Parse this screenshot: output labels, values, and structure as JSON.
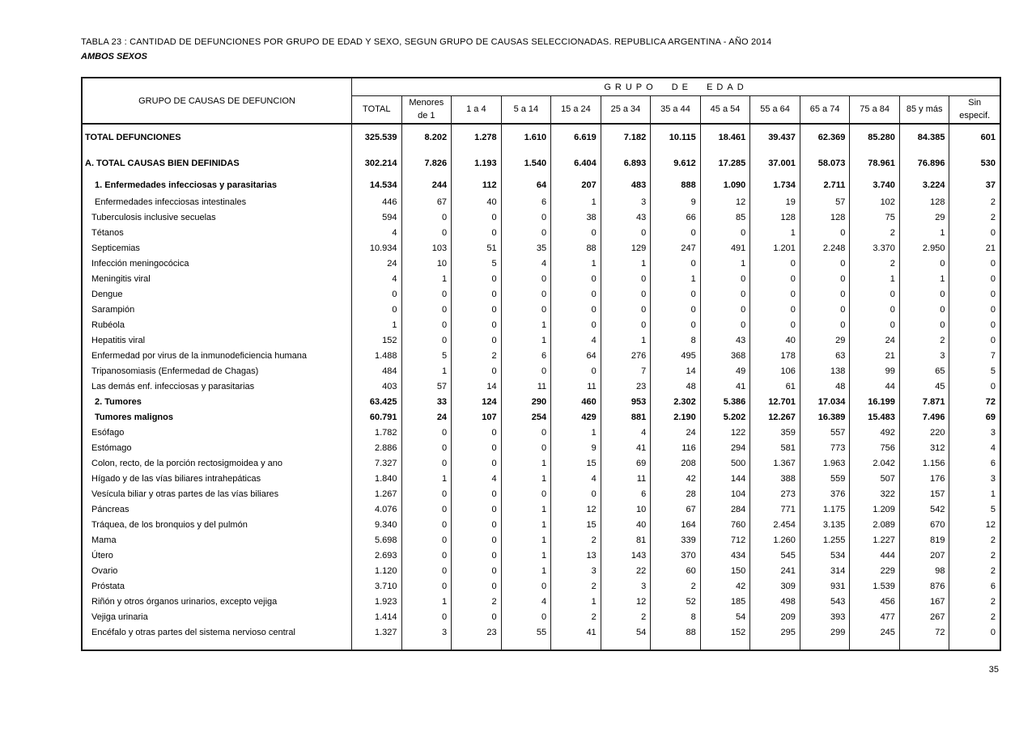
{
  "page": {
    "number": "35"
  },
  "title": {
    "line1": "TABLA 23 : CANTIDAD DE DEFUNCIONES POR GRUPO DE EDAD Y SEXO,  SEGUN GRUPO DE CAUSAS SELECCIONADAS. REPUBLICA ARGENTINA - AÑO 2014",
    "line2": "AMBOS SEXOS"
  },
  "table": {
    "causes_header": "GRUPO DE CAUSAS DE DEFUNCION",
    "group_header": "GRUPO DE EDAD",
    "columns": [
      "TOTAL",
      "Menores\nde 1",
      "1 a 4",
      "5 a 14",
      "15 a 24",
      "25 a 34",
      "35 a 44",
      "45 a 54",
      "55 a 64",
      "65 a 74",
      "75 a 84",
      "85 y más",
      "Sin\nespecif."
    ],
    "rows": [
      {
        "label": "TOTAL DEFUNCIONES",
        "bold": true,
        "indent": 0,
        "size": "xl",
        "values": [
          "325.539",
          "8.202",
          "1.278",
          "1.610",
          "6.619",
          "7.182",
          "10.115",
          "18.461",
          "39.437",
          "62.369",
          "85.280",
          "84.385",
          "601"
        ]
      },
      {
        "label": "A. TOTAL CAUSAS BIEN DEFINIDAS",
        "bold": true,
        "indent": 0,
        "size": "xl",
        "values": [
          "302.214",
          "7.826",
          "1.193",
          "1.540",
          "6.404",
          "6.893",
          "9.612",
          "17.285",
          "37.001",
          "58.073",
          "78.961",
          "76.896",
          "530"
        ]
      },
      {
        "label": "1. Enfermedades infecciosas y parasitarias",
        "bold": true,
        "indent": 2,
        "size": "lg",
        "values": [
          "14.534",
          "244",
          "112",
          "64",
          "207",
          "483",
          "888",
          "1.090",
          "1.734",
          "2.711",
          "3.740",
          "3.224",
          "37"
        ]
      },
      {
        "label": "Enfermedades infecciosas intestinales",
        "bold": false,
        "indent": 2,
        "values": [
          "446",
          "67",
          "40",
          "6",
          "1",
          "3",
          "9",
          "12",
          "19",
          "57",
          "102",
          "128",
          "2"
        ]
      },
      {
        "label": "Tuberculosis inclusive secuelas",
        "bold": false,
        "indent": 1,
        "values": [
          "594",
          "0",
          "0",
          "0",
          "38",
          "43",
          "66",
          "85",
          "128",
          "128",
          "75",
          "29",
          "2"
        ]
      },
      {
        "label": "Tétanos",
        "bold": false,
        "indent": 1,
        "values": [
          "4",
          "0",
          "0",
          "0",
          "0",
          "0",
          "0",
          "0",
          "1",
          "0",
          "2",
          "1",
          "0"
        ]
      },
      {
        "label": "Septicemias",
        "bold": false,
        "indent": 1,
        "values": [
          "10.934",
          "103",
          "51",
          "35",
          "88",
          "129",
          "247",
          "491",
          "1.201",
          "2.248",
          "3.370",
          "2.950",
          "21"
        ]
      },
      {
        "label": "Infección meningocócica",
        "bold": false,
        "indent": 1,
        "values": [
          "24",
          "10",
          "5",
          "4",
          "1",
          "1",
          "0",
          "1",
          "0",
          "0",
          "2",
          "0",
          "0"
        ]
      },
      {
        "label": "Meningitis viral",
        "bold": false,
        "indent": 1,
        "values": [
          "4",
          "1",
          "0",
          "0",
          "0",
          "0",
          "1",
          "0",
          "0",
          "0",
          "1",
          "1",
          "0"
        ]
      },
      {
        "label": "Dengue",
        "bold": false,
        "indent": 1,
        "values": [
          "0",
          "0",
          "0",
          "0",
          "0",
          "0",
          "0",
          "0",
          "0",
          "0",
          "0",
          "0",
          "0"
        ]
      },
      {
        "label": "Sarampión",
        "bold": false,
        "indent": 1,
        "values": [
          "0",
          "0",
          "0",
          "0",
          "0",
          "0",
          "0",
          "0",
          "0",
          "0",
          "0",
          "0",
          "0"
        ]
      },
      {
        "label": "Rubéola",
        "bold": false,
        "indent": 1,
        "values": [
          "1",
          "0",
          "0",
          "1",
          "0",
          "0",
          "0",
          "0",
          "0",
          "0",
          "0",
          "0",
          "0"
        ]
      },
      {
        "label": "Hepatitis viral",
        "bold": false,
        "indent": 1,
        "values": [
          "152",
          "0",
          "0",
          "1",
          "4",
          "1",
          "8",
          "43",
          "40",
          "29",
          "24",
          "2",
          "0"
        ]
      },
      {
        "label": "Enfermedad por virus de la inmunodeficiencia humana",
        "bold": false,
        "indent": 1,
        "values": [
          "1.488",
          "5",
          "2",
          "6",
          "64",
          "276",
          "495",
          "368",
          "178",
          "63",
          "21",
          "3",
          "7"
        ]
      },
      {
        "label": "Tripanosomiasis (Enfermedad de Chagas)",
        "bold": false,
        "indent": 1,
        "values": [
          "484",
          "1",
          "0",
          "0",
          "0",
          "7",
          "14",
          "49",
          "106",
          "138",
          "99",
          "65",
          "5"
        ]
      },
      {
        "label": "Las demás enf. infecciosas y parasitarias",
        "bold": false,
        "indent": 1,
        "values": [
          "403",
          "57",
          "14",
          "11",
          "11",
          "23",
          "48",
          "41",
          "61",
          "48",
          "44",
          "45",
          "0"
        ]
      },
      {
        "label": "2. Tumores",
        "bold": true,
        "indent": 2,
        "values": [
          "63.425",
          "33",
          "124",
          "290",
          "460",
          "953",
          "2.302",
          "5.386",
          "12.701",
          "17.034",
          "16.199",
          "7.871",
          "72"
        ]
      },
      {
        "label": "Tumores malignos",
        "bold": true,
        "indent": 2,
        "values": [
          "60.791",
          "24",
          "107",
          "254",
          "429",
          "881",
          "2.190",
          "5.202",
          "12.267",
          "16.389",
          "15.483",
          "7.496",
          "69"
        ]
      },
      {
        "label": "Esófago",
        "bold": false,
        "indent": 1,
        "values": [
          "1.782",
          "0",
          "0",
          "0",
          "1",
          "4",
          "24",
          "122",
          "359",
          "557",
          "492",
          "220",
          "3"
        ]
      },
      {
        "label": "Estómago",
        "bold": false,
        "indent": 1,
        "values": [
          "2.886",
          "0",
          "0",
          "0",
          "9",
          "41",
          "116",
          "294",
          "581",
          "773",
          "756",
          "312",
          "4"
        ]
      },
      {
        "label": "Colon, recto,  de la porción rectosigmoidea y ano",
        "bold": false,
        "indent": 1,
        "values": [
          "7.327",
          "0",
          "0",
          "1",
          "15",
          "69",
          "208",
          "500",
          "1.367",
          "1.963",
          "2.042",
          "1.156",
          "6"
        ]
      },
      {
        "label": "Hígado y de las vías biliares intrahepáticas",
        "bold": false,
        "indent": 1,
        "values": [
          "1.840",
          "1",
          "4",
          "1",
          "4",
          "11",
          "42",
          "144",
          "388",
          "559",
          "507",
          "176",
          "3"
        ]
      },
      {
        "label": "Vesícula biliar y otras partes de las vías biliares",
        "bold": false,
        "indent": 1,
        "values": [
          "1.267",
          "0",
          "0",
          "0",
          "0",
          "6",
          "28",
          "104",
          "273",
          "376",
          "322",
          "157",
          "1"
        ]
      },
      {
        "label": "Páncreas",
        "bold": false,
        "indent": 1,
        "values": [
          "4.076",
          "0",
          "0",
          "1",
          "12",
          "10",
          "67",
          "284",
          "771",
          "1.175",
          "1.209",
          "542",
          "5"
        ]
      },
      {
        "label": "Tráquea, de los bronquios y del pulmón",
        "bold": false,
        "indent": 1,
        "values": [
          "9.340",
          "0",
          "0",
          "1",
          "15",
          "40",
          "164",
          "760",
          "2.454",
          "3.135",
          "2.089",
          "670",
          "12"
        ]
      },
      {
        "label": "Mama",
        "bold": false,
        "indent": 1,
        "values": [
          "5.698",
          "0",
          "0",
          "1",
          "2",
          "81",
          "339",
          "712",
          "1.260",
          "1.255",
          "1.227",
          "819",
          "2"
        ]
      },
      {
        "label": "Útero",
        "bold": false,
        "indent": 1,
        "values": [
          "2.693",
          "0",
          "0",
          "1",
          "13",
          "143",
          "370",
          "434",
          "545",
          "534",
          "444",
          "207",
          "2"
        ]
      },
      {
        "label": "Ovario",
        "bold": false,
        "indent": 1,
        "values": [
          "1.120",
          "0",
          "0",
          "1",
          "3",
          "22",
          "60",
          "150",
          "241",
          "314",
          "229",
          "98",
          "2"
        ]
      },
      {
        "label": "Próstata",
        "bold": false,
        "indent": 1,
        "values": [
          "3.710",
          "0",
          "0",
          "0",
          "2",
          "3",
          "2",
          "42",
          "309",
          "931",
          "1.539",
          "876",
          "6"
        ]
      },
      {
        "label": "Riñón y otros órganos urinarios, excepto vejiga",
        "bold": false,
        "indent": 1,
        "values": [
          "1.923",
          "1",
          "2",
          "4",
          "1",
          "12",
          "52",
          "185",
          "498",
          "543",
          "456",
          "167",
          "2"
        ]
      },
      {
        "label": "Vejiga urinaria",
        "bold": false,
        "indent": 1,
        "values": [
          "1.414",
          "0",
          "0",
          "0",
          "2",
          "2",
          "8",
          "54",
          "209",
          "393",
          "477",
          "267",
          "2"
        ]
      },
      {
        "label": "Encéfalo y otras partes del sistema nervioso central",
        "bold": false,
        "indent": 1,
        "values": [
          "1.327",
          "3",
          "23",
          "55",
          "41",
          "54",
          "88",
          "152",
          "295",
          "299",
          "245",
          "72",
          "0"
        ]
      }
    ]
  }
}
